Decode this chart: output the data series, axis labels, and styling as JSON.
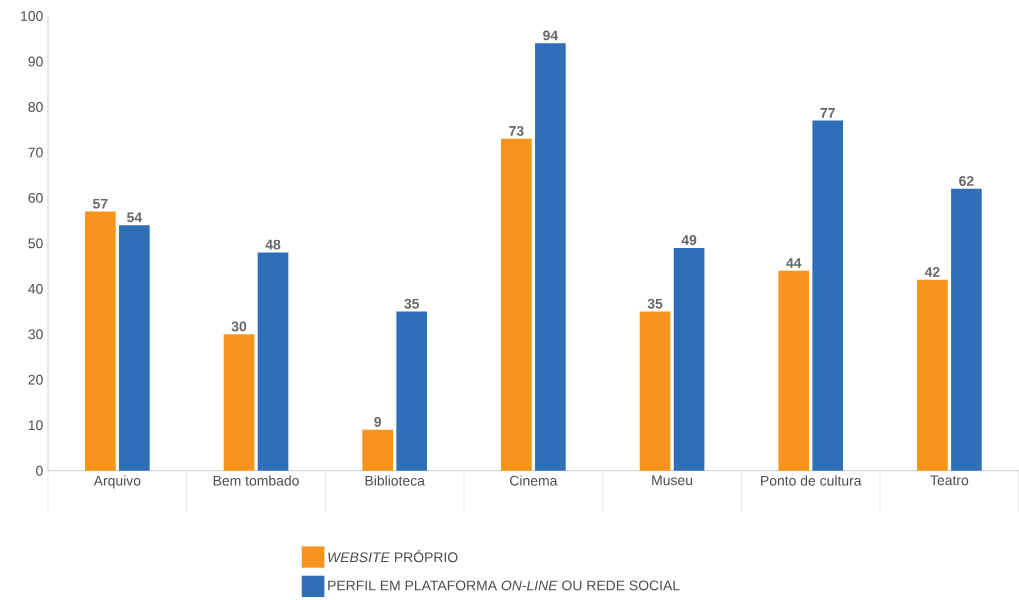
{
  "chart_data": {
    "type": "bar",
    "categories": [
      "Arquivo",
      "Bem tombado",
      "Biblioteca",
      "Cinema",
      "Museu",
      "Ponto de cultura",
      "Teatro"
    ],
    "series": [
      {
        "name": "*WEBSITE* PRÓPRIO",
        "color": "#f7941d",
        "values": [
          57,
          30,
          9,
          73,
          35,
          44,
          42
        ]
      },
      {
        "name": "PERFIL EM PLATAFORMA *ON-LINE* OU REDE SOCIAL",
        "color": "#2e6fb7",
        "values": [
          54,
          48,
          35,
          94,
          49,
          77,
          62
        ]
      }
    ],
    "ylim": [
      0,
      100
    ],
    "yticks": [
      0,
      10,
      20,
      30,
      40,
      50,
      60,
      70,
      80,
      90,
      100
    ],
    "data_labels": true,
    "legend": "bottom"
  }
}
